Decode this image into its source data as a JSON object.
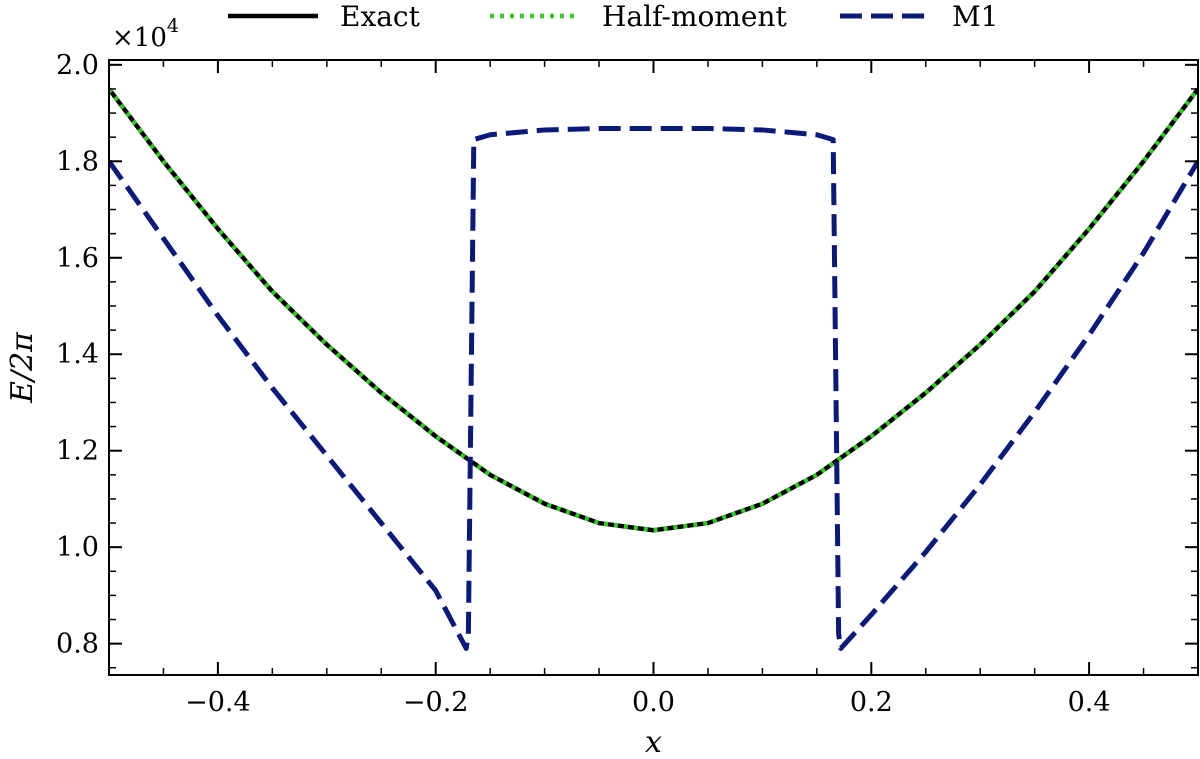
{
  "chart_data": {
    "type": "line",
    "xlabel": "x",
    "ylabel": "E/2π",
    "xlim": [
      -0.5,
      0.5
    ],
    "ylim": [
      0.735,
      2.01
    ],
    "y_multiplier_label": "×10",
    "y_multiplier_exponent": "4",
    "xticks": [
      -0.4,
      -0.2,
      0.0,
      0.2,
      0.4
    ],
    "xtick_labels": [
      "−0.4",
      "−0.2",
      "0.0",
      "0.2",
      "0.4"
    ],
    "yticks": [
      0.8,
      1.0,
      1.2,
      1.4,
      1.6,
      1.8,
      2.0
    ],
    "ytick_labels": [
      "0.8",
      "1.0",
      "1.2",
      "1.4",
      "1.6",
      "1.8",
      "2.0"
    ],
    "grid": false,
    "legend_position": "top",
    "series": [
      {
        "name": "Exact",
        "style": "solid",
        "color": "#000000",
        "x": [
          -0.5,
          -0.45,
          -0.4,
          -0.35,
          -0.3,
          -0.25,
          -0.2,
          -0.15,
          -0.1,
          -0.05,
          0.0,
          0.05,
          0.1,
          0.15,
          0.2,
          0.25,
          0.3,
          0.35,
          0.4,
          0.45,
          0.5
        ],
        "y": [
          1.95,
          1.8,
          1.66,
          1.53,
          1.42,
          1.32,
          1.23,
          1.15,
          1.09,
          1.05,
          1.035,
          1.05,
          1.09,
          1.15,
          1.23,
          1.32,
          1.42,
          1.53,
          1.66,
          1.8,
          1.95
        ]
      },
      {
        "name": "Half-moment",
        "style": "dotted",
        "color": "#2ecc1f",
        "x": [
          -0.5,
          -0.45,
          -0.4,
          -0.35,
          -0.3,
          -0.25,
          -0.2,
          -0.15,
          -0.1,
          -0.05,
          0.0,
          0.05,
          0.1,
          0.15,
          0.2,
          0.25,
          0.3,
          0.35,
          0.4,
          0.45,
          0.5
        ],
        "y": [
          1.95,
          1.8,
          1.66,
          1.53,
          1.42,
          1.32,
          1.23,
          1.15,
          1.09,
          1.05,
          1.035,
          1.05,
          1.09,
          1.15,
          1.23,
          1.32,
          1.42,
          1.53,
          1.66,
          1.8,
          1.95
        ]
      },
      {
        "name": "M1",
        "style": "dashed",
        "color": "#0b1a7a",
        "x": [
          -0.5,
          -0.45,
          -0.4,
          -0.35,
          -0.3,
          -0.25,
          -0.2,
          -0.172,
          -0.17,
          -0.165,
          -0.15,
          -0.1,
          -0.05,
          0.0,
          0.05,
          0.1,
          0.15,
          0.165,
          0.17,
          0.172,
          0.2,
          0.25,
          0.3,
          0.35,
          0.4,
          0.45,
          0.5
        ],
        "y": [
          1.8,
          1.64,
          1.48,
          1.33,
          1.19,
          1.05,
          0.91,
          0.79,
          0.82,
          1.845,
          1.855,
          1.865,
          1.868,
          1.868,
          1.868,
          1.865,
          1.855,
          1.845,
          0.82,
          0.79,
          0.86,
          0.99,
          1.13,
          1.28,
          1.44,
          1.61,
          1.8
        ]
      }
    ]
  }
}
